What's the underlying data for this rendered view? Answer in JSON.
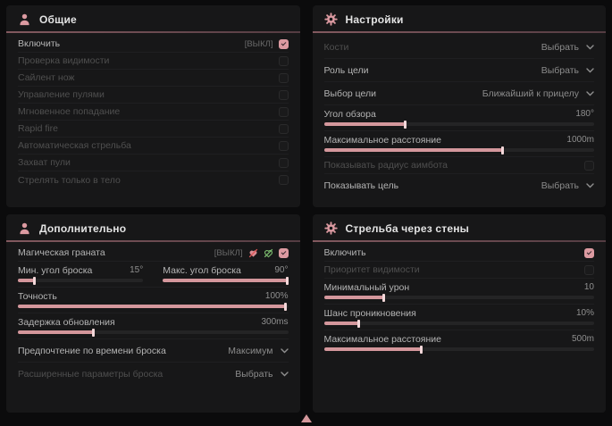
{
  "colors": {
    "page_bg": "#0b0b0c",
    "panel_bg": "#171718",
    "accent": "#dc9aa1",
    "header_line": "#82595f",
    "slider_fill": "#d4979c",
    "slider_thumb": "#f3d7d9",
    "green_icon": "#7cbb6e",
    "red_slash": "#e05555"
  },
  "panels": [
    {
      "title": "Общие",
      "icon": "person-icon",
      "rows": [
        {
          "type": "checkbox",
          "label": "Включить",
          "keybind": "[ВЫКЛ]",
          "checked": true,
          "enabled": true
        },
        {
          "type": "checkbox",
          "label": "Проверка видимости",
          "checked": false,
          "enabled": false
        },
        {
          "type": "checkbox",
          "label": "Сайлент нож",
          "checked": false,
          "enabled": false
        },
        {
          "type": "checkbox",
          "label": "Управление пулями",
          "checked": false,
          "enabled": false
        },
        {
          "type": "checkbox",
          "label": "Мгновенное попадание",
          "checked": false,
          "enabled": false
        },
        {
          "type": "checkbox",
          "label": "Rapid fire",
          "checked": false,
          "enabled": false
        },
        {
          "type": "checkbox",
          "label": "Автоматическая стрельба",
          "checked": false,
          "enabled": false
        },
        {
          "type": "checkbox",
          "label": "Захват пули",
          "checked": false,
          "enabled": false
        },
        {
          "type": "checkbox",
          "label": "Стрелять только в тело",
          "checked": false,
          "enabled": false
        }
      ]
    },
    {
      "title": "Настройки",
      "icon": "gear-icon",
      "rows": [
        {
          "type": "dropdown",
          "label": "Кости",
          "value": "Выбрать",
          "enabled": false
        },
        {
          "type": "dropdown",
          "label": "Роль цели",
          "value": "Выбрать",
          "enabled": true
        },
        {
          "type": "dropdown",
          "label": "Выбор цели",
          "value": "Ближайший к прицелу",
          "enabled": true
        },
        {
          "type": "slider",
          "label": "Угол обзора",
          "value": "180°",
          "fill": 30,
          "enabled": true
        },
        {
          "type": "slider",
          "label": "Максимальное расстояние",
          "value": "1000m",
          "fill": 66,
          "enabled": true
        },
        {
          "type": "checkbox",
          "label": "Показывать радиус аимбота",
          "checked": false,
          "enabled": false
        },
        {
          "type": "dropdown",
          "label": "Показывать цель",
          "value": "Выбрать",
          "enabled": true
        }
      ]
    },
    {
      "title": "Дополнительно",
      "icon": "person-icon",
      "rows": [
        {
          "type": "checkbox",
          "label": "Магическая граната",
          "keybind": "[ВЫКЛ]",
          "icons": [
            "heart-slash-red-icon",
            "heart-slash-green-icon"
          ],
          "checked": true,
          "enabled": true
        },
        {
          "type": "dual_slider",
          "items": [
            {
              "label": "Мин. угол броска",
              "value": "15°",
              "fill": 13
            },
            {
              "label": "Макс. угол броска",
              "value": "90°",
              "fill": 99
            }
          ]
        },
        {
          "type": "slider",
          "label": "Точность",
          "value": "100%",
          "fill": 99,
          "enabled": true
        },
        {
          "type": "slider",
          "label": "Задержка обновления",
          "value": "300ms",
          "fill": 28,
          "enabled": true
        },
        {
          "type": "dropdown",
          "label": "Предпочтение по времени броска",
          "value": "Максимум",
          "enabled": true
        },
        {
          "type": "dropdown",
          "label": "Расширенные параметры броска",
          "value": "Выбрать",
          "enabled": false
        }
      ]
    },
    {
      "title": "Стрельба через стены",
      "icon": "gear-icon",
      "rows": [
        {
          "type": "checkbox",
          "label": "Включить",
          "checked": true,
          "enabled": true
        },
        {
          "type": "checkbox",
          "label": "Приоритет видимости",
          "checked": false,
          "enabled": false
        },
        {
          "type": "slider",
          "label": "Минимальный урон",
          "value": "10",
          "fill": 22,
          "enabled": true
        },
        {
          "type": "slider",
          "label": "Шанс проникновения",
          "value": "10%",
          "fill": 13,
          "enabled": true
        },
        {
          "type": "slider",
          "label": "Максимальное расстояние",
          "value": "500m",
          "fill": 36,
          "enabled": true
        }
      ]
    }
  ],
  "scroll_indicator": {
    "shape": "triangle-up",
    "color": "#d4979c"
  }
}
